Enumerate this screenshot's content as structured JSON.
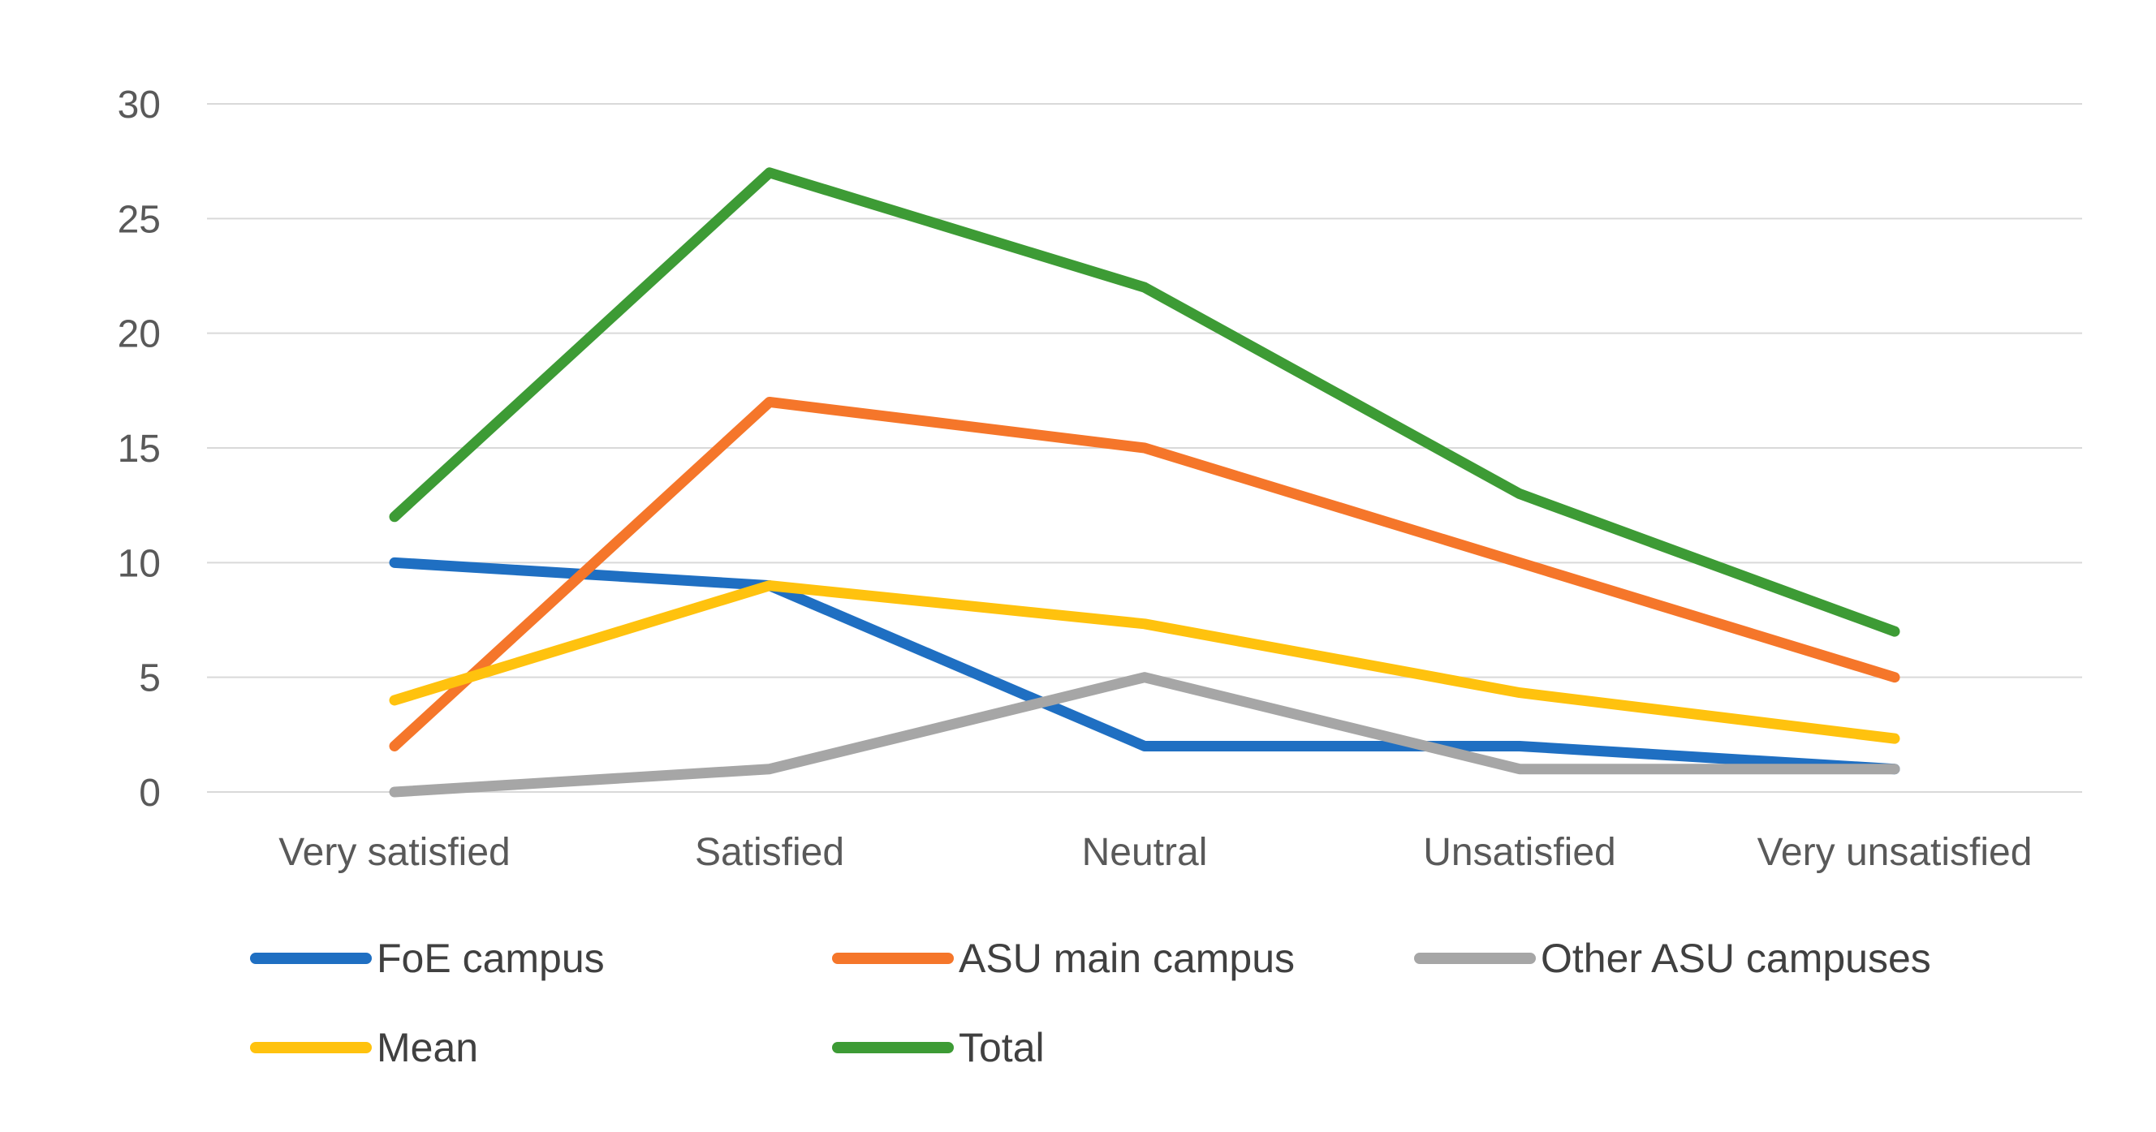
{
  "chart_data": {
    "type": "line",
    "categories": [
      "Very satisfied",
      "Satisfied",
      "Neutral",
      "Unsatisfied",
      "Very unsatisfied"
    ],
    "series": [
      {
        "name": "FoE campus",
        "color": "#1f6fc2",
        "values": [
          10,
          9,
          2,
          2,
          1
        ]
      },
      {
        "name": "ASU main campus",
        "color": "#f5762a",
        "values": [
          2,
          17,
          15,
          10,
          5
        ]
      },
      {
        "name": "Other ASU campuses",
        "color": "#a6a6a6",
        "values": [
          0,
          1,
          5,
          1,
          1
        ]
      },
      {
        "name": "Mean",
        "color": "#ffc20e",
        "values": [
          4,
          9,
          7.33,
          4.33,
          2.33
        ]
      },
      {
        "name": "Total",
        "color": "#3d9b35",
        "values": [
          12,
          27,
          22,
          13,
          7
        ]
      }
    ],
    "y_ticks": [
      "0",
      "5",
      "10",
      "15",
      "20",
      "25",
      "30"
    ],
    "ylim": [
      0,
      30
    ],
    "title": "",
    "xlabel": "",
    "ylabel": "",
    "grid": "horizontal",
    "legend_position": "bottom"
  }
}
